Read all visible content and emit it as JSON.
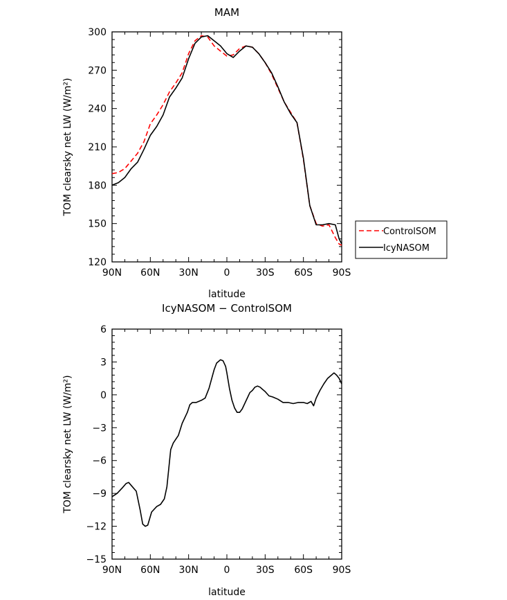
{
  "chart_data": [
    {
      "type": "line",
      "title": "MAM",
      "xlabel": "latitude",
      "ylabel": "TOM clearsky net LW (W/m²)",
      "xlim": [
        90,
        -90
      ],
      "ylim": [
        120,
        300
      ],
      "x_ticks": [
        90,
        60,
        30,
        0,
        -30,
        -60,
        -90
      ],
      "x_tick_labels": [
        "90N",
        "60N",
        "30N",
        "0",
        "30S",
        "60S",
        "90S"
      ],
      "y_ticks": [
        120,
        150,
        180,
        210,
        240,
        270,
        300
      ],
      "legend": "outside-right",
      "series": [
        {
          "name": "ControlSOM",
          "color": "#ff0000",
          "style": "dashed",
          "x": [
            90,
            85,
            80,
            75,
            70,
            65,
            60,
            55,
            50,
            45,
            40,
            35,
            30,
            25,
            20,
            15,
            10,
            5,
            0,
            -5,
            -10,
            -15,
            -20,
            -25,
            -30,
            -35,
            -40,
            -45,
            -50,
            -55,
            -60,
            -65,
            -70,
            -75,
            -80,
            -85,
            -88,
            -90
          ],
          "y": [
            189,
            190,
            193,
            199,
            205,
            214,
            228,
            235,
            243,
            253,
            260,
            268,
            283,
            293,
            297,
            296,
            289,
            285,
            281,
            282,
            287,
            289,
            288,
            283,
            276,
            267,
            256,
            245,
            237,
            229,
            200,
            164,
            150,
            148,
            149,
            139,
            134,
            133
          ]
        },
        {
          "name": "IcyNASOM",
          "color": "#000000",
          "style": "solid",
          "x": [
            90,
            85,
            80,
            75,
            70,
            65,
            60,
            55,
            50,
            45,
            40,
            35,
            30,
            25,
            20,
            15,
            10,
            5,
            0,
            -5,
            -10,
            -15,
            -20,
            -25,
            -30,
            -35,
            -40,
            -45,
            -50,
            -55,
            -60,
            -65,
            -70,
            -75,
            -80,
            -85,
            -88,
            -90
          ],
          "y": [
            180,
            182,
            186,
            193,
            198,
            208,
            219,
            226,
            235,
            249,
            256,
            264,
            279,
            291,
            296,
            297,
            293,
            289,
            283,
            280,
            285,
            289,
            288,
            283,
            276,
            268,
            257,
            245,
            236,
            229,
            201,
            164,
            149,
            149,
            150,
            149,
            138,
            134
          ]
        }
      ]
    },
    {
      "type": "line",
      "title": "IcyNASOM − ControlSOM",
      "xlabel": "latitude",
      "ylabel": "TOM clearsky net LW (W/m²)",
      "xlim": [
        90,
        -90
      ],
      "ylim": [
        -15,
        6
      ],
      "x_ticks": [
        90,
        60,
        30,
        0,
        -30,
        -60,
        -90
      ],
      "x_tick_labels": [
        "90N",
        "60N",
        "30N",
        "0",
        "30S",
        "60S",
        "90S"
      ],
      "y_ticks": [
        -15,
        -12,
        -9,
        -6,
        -3,
        0,
        3,
        6
      ],
      "series": [
        {
          "color": "#000000",
          "style": "solid",
          "x": [
            90,
            86,
            82,
            79,
            77,
            74,
            71,
            68,
            66,
            64,
            62,
            59,
            55,
            52,
            49,
            47,
            44,
            42,
            38,
            35,
            31,
            29,
            27,
            24,
            20,
            17,
            14,
            10,
            8,
            5,
            3,
            1,
            0,
            -2,
            -4,
            -6,
            -8,
            -10,
            -12,
            -14,
            -16,
            -18,
            -20,
            -22,
            -24,
            -26,
            -28,
            -30,
            -33,
            -36,
            -40,
            -44,
            -48,
            -52,
            -56,
            -60,
            -63,
            -66,
            -68,
            -70,
            -73,
            -76,
            -79,
            -82,
            -84,
            -86,
            -88,
            -90
          ],
          "y": [
            -9.3,
            -9.0,
            -8.5,
            -8.1,
            -8.0,
            -8.4,
            -8.8,
            -10.5,
            -11.8,
            -12.0,
            -11.9,
            -10.7,
            -10.2,
            -10.0,
            -9.5,
            -8.4,
            -5.0,
            -4.4,
            -3.7,
            -2.6,
            -1.6,
            -0.9,
            -0.7,
            -0.7,
            -0.5,
            -0.3,
            0.6,
            2.3,
            2.9,
            3.2,
            3.1,
            2.6,
            2.0,
            0.6,
            -0.5,
            -1.2,
            -1.6,
            -1.6,
            -1.3,
            -0.8,
            -0.3,
            0.2,
            0.4,
            0.7,
            0.8,
            0.7,
            0.5,
            0.3,
            -0.1,
            -0.2,
            -0.4,
            -0.7,
            -0.7,
            -0.8,
            -0.7,
            -0.7,
            -0.8,
            -0.6,
            -1.0,
            -0.3,
            0.4,
            1.0,
            1.5,
            1.8,
            2.0,
            1.8,
            1.5,
            1.0
          ]
        }
      ]
    }
  ]
}
